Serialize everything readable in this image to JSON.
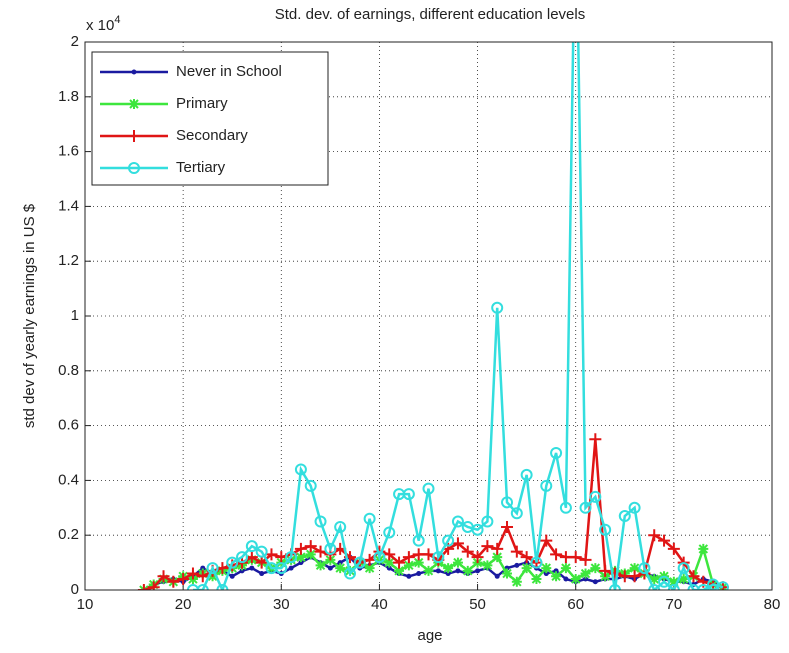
{
  "chart_data": {
    "type": "line",
    "title": "Std. dev. of earnings, different education levels",
    "x_label": "age",
    "y_label": "std dev of yearly earnings in US $",
    "y_scale_label": "x 10",
    "y_scale_exponent": "4",
    "xlim": [
      10,
      80
    ],
    "xticks": [
      10,
      20,
      30,
      40,
      50,
      60,
      70,
      80
    ],
    "ylim": [
      0,
      2
    ],
    "yticks": [
      0,
      0.2,
      0.4,
      0.6,
      0.8,
      1,
      1.2,
      1.4,
      1.6,
      1.8,
      2
    ],
    "grid": true,
    "legend": "upper left",
    "x": [
      16,
      17,
      18,
      19,
      20,
      21,
      22,
      23,
      24,
      25,
      26,
      27,
      28,
      29,
      30,
      31,
      32,
      33,
      34,
      35,
      36,
      37,
      38,
      39,
      40,
      41,
      42,
      43,
      44,
      45,
      46,
      47,
      48,
      49,
      50,
      51,
      52,
      53,
      54,
      55,
      56,
      57,
      58,
      59,
      60,
      61,
      62,
      63,
      64,
      65,
      66,
      67,
      68,
      69,
      70,
      71,
      72,
      73,
      74,
      75
    ],
    "series": [
      {
        "name": "Never in School",
        "color": "#1a1aa0",
        "marker": "dot",
        "values": [
          0,
          0.02,
          0.03,
          0.04,
          0.03,
          0.05,
          0.08,
          0.06,
          0.07,
          0.05,
          0.07,
          0.08,
          0.06,
          0.07,
          0.06,
          0.08,
          0.1,
          0.12,
          0.1,
          0.08,
          0.1,
          0.12,
          0.08,
          0.09,
          0.1,
          0.08,
          0.06,
          0.05,
          0.06,
          0.07,
          0.07,
          0.06,
          0.07,
          0.06,
          0.07,
          0.08,
          0.05,
          0.08,
          0.09,
          0.1,
          0.08,
          0.06,
          0.07,
          0.04,
          0.03,
          0.04,
          0.03,
          0.04,
          0.04,
          0.05,
          0.04,
          0.06,
          0.05,
          0.04,
          0.03,
          0.03,
          0.02,
          0.04,
          0.03,
          0.01
        ]
      },
      {
        "name": "Primary",
        "color": "#3de63d",
        "marker": "star",
        "values": [
          0,
          0.02,
          0.04,
          0.03,
          0.05,
          0.04,
          0.06,
          0.05,
          0.07,
          0.08,
          0.09,
          0.11,
          0.1,
          0.08,
          0.1,
          0.11,
          0.12,
          0.13,
          0.09,
          0.11,
          0.08,
          0.07,
          0.1,
          0.08,
          0.11,
          0.1,
          0.07,
          0.09,
          0.1,
          0.07,
          0.1,
          0.08,
          0.1,
          0.07,
          0.1,
          0.09,
          0.12,
          0.06,
          0.03,
          0.08,
          0.04,
          0.08,
          0.05,
          0.08,
          0.04,
          0.06,
          0.08,
          0.05,
          0.07,
          0.06,
          0.08,
          0.06,
          0.04,
          0.05,
          0.03,
          0.04,
          0.05,
          0.15,
          0.02,
          0.01
        ]
      },
      {
        "name": "Secondary",
        "color": "#e01515",
        "marker": "plus",
        "values": [
          0,
          0.01,
          0.05,
          0.03,
          0.04,
          0.06,
          0.05,
          0.07,
          0.08,
          0.09,
          0.1,
          0.12,
          0.1,
          0.13,
          0.12,
          0.13,
          0.15,
          0.16,
          0.14,
          0.13,
          0.15,
          0.12,
          0.1,
          0.11,
          0.14,
          0.13,
          0.1,
          0.12,
          0.13,
          0.13,
          0.11,
          0.15,
          0.17,
          0.14,
          0.12,
          0.16,
          0.15,
          0.23,
          0.14,
          0.12,
          0.1,
          0.18,
          0.13,
          0.12,
          0.12,
          0.11,
          0.55,
          0.07,
          0.06,
          0.05,
          0.05,
          0.06,
          0.2,
          0.18,
          0.15,
          0.1,
          0.05,
          0.03,
          0.02,
          0.01
        ]
      },
      {
        "name": "Tertiary",
        "color": "#33dede",
        "marker": "circle",
        "values": [
          null,
          null,
          null,
          null,
          null,
          0,
          0,
          0.08,
          0,
          0.1,
          0.12,
          0.16,
          0.14,
          0.08,
          0.08,
          0.12,
          0.44,
          0.38,
          0.25,
          0.15,
          0.23,
          0.06,
          0.1,
          0.26,
          0.12,
          0.21,
          0.35,
          0.35,
          0.18,
          0.37,
          0.12,
          0.18,
          0.25,
          0.23,
          0.22,
          0.25,
          1.03,
          0.32,
          0.28,
          0.42,
          0.1,
          0.38,
          0.5,
          0.3,
          2.6,
          0.3,
          0.34,
          0.22,
          0,
          0.27,
          0.3,
          0.08,
          0,
          0.03,
          0,
          0.08,
          0,
          0,
          0.02,
          0.01
        ]
      }
    ]
  }
}
